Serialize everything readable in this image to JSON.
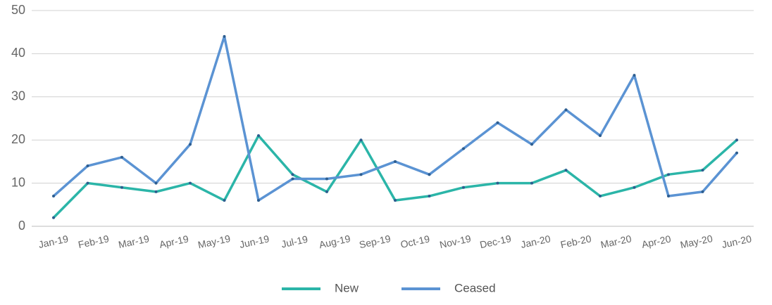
{
  "chart_data": {
    "type": "line",
    "categories": [
      "Jan-19",
      "Feb-19",
      "Mar-19",
      "Apr-19",
      "May-19",
      "Jun-19",
      null,
      "Jul-19",
      "Aug-19",
      "Sep-19",
      "Oct-19",
      "Nov-19",
      "Dec-19",
      null,
      "Jan-20",
      "Feb-20",
      "Mar-20",
      "Apr-20",
      "May-20",
      null,
      "Jun-20"
    ],
    "series": [
      {
        "name": "New",
        "color": "#2bb5a8",
        "values": [
          2,
          10,
          9,
          8,
          10,
          6,
          21,
          12,
          8,
          20,
          6,
          7,
          9,
          10,
          10,
          13,
          7,
          9,
          12,
          13,
          20
        ]
      },
      {
        "name": "Ceased",
        "color": "#5b93d3",
        "values": [
          7,
          14,
          16,
          10,
          19,
          44,
          6,
          11,
          11,
          12,
          15,
          12,
          18,
          24,
          19,
          27,
          21,
          35,
          7,
          8,
          17
        ]
      }
    ],
    "ylim": [
      0,
      50
    ],
    "yticks": [
      0,
      10,
      20,
      30,
      40,
      50
    ],
    "grid": true,
    "legend": "bottom"
  }
}
